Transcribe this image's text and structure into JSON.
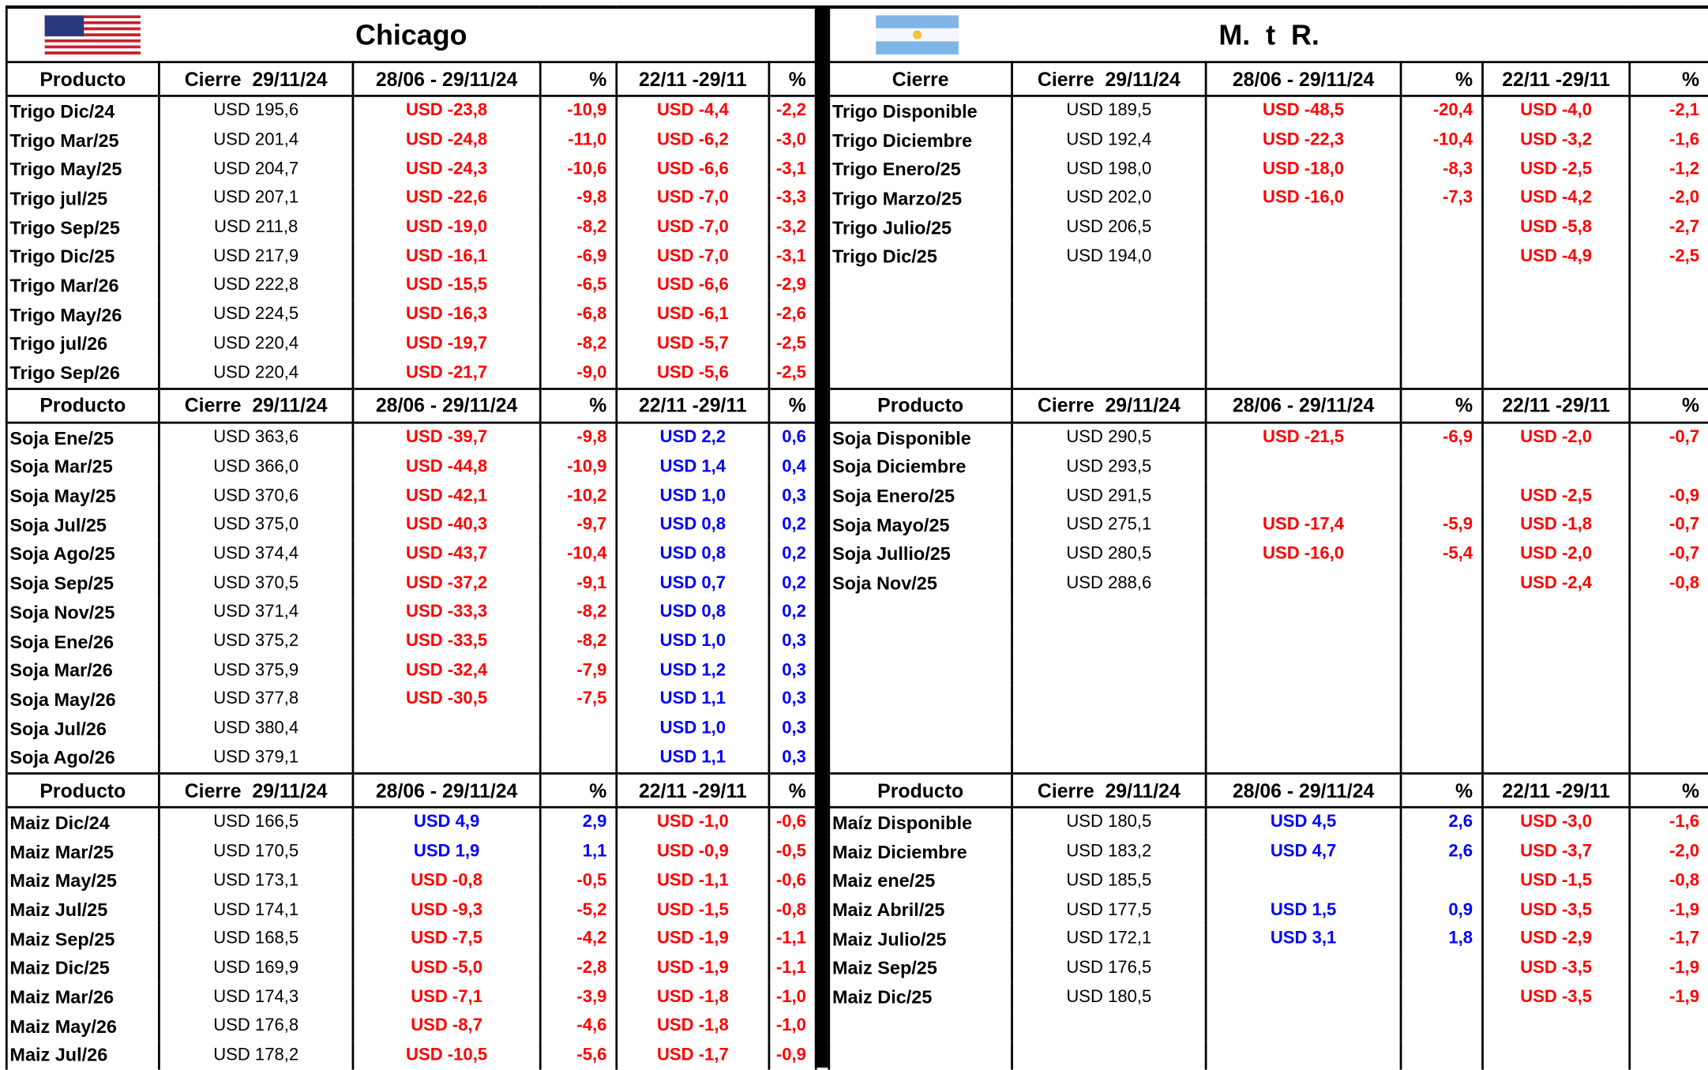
{
  "left": {
    "title": "Chicago",
    "sections": [
      {
        "header": [
          "Producto",
          "Cierre  29/11/24",
          "28/06 - 29/11/24",
          "%",
          "22/11 -29/11",
          "%"
        ],
        "rows": [
          [
            "Trigo Dic/24",
            "USD 195,6",
            "USD -23,8",
            "-10,9",
            "USD -4,4",
            "-2,2"
          ],
          [
            "Trigo Mar/25",
            "USD 201,4",
            "USD -24,8",
            "-11,0",
            "USD -6,2",
            "-3,0"
          ],
          [
            "Trigo May/25",
            "USD 204,7",
            "USD -24,3",
            "-10,6",
            "USD -6,6",
            "-3,1"
          ],
          [
            "Trigo jul/25",
            "USD 207,1",
            "USD -22,6",
            "-9,8",
            "USD -7,0",
            "-3,3"
          ],
          [
            "Trigo Sep/25",
            "USD 211,8",
            "USD -19,0",
            "-8,2",
            "USD -7,0",
            "-3,2"
          ],
          [
            "Trigo Dic/25",
            "USD 217,9",
            "USD -16,1",
            "-6,9",
            "USD -7,0",
            "-3,1"
          ],
          [
            "Trigo Mar/26",
            "USD 222,8",
            "USD -15,5",
            "-6,5",
            "USD -6,6",
            "-2,9"
          ],
          [
            "Trigo May/26",
            "USD 224,5",
            "USD -16,3",
            "-6,8",
            "USD -6,1",
            "-2,6"
          ],
          [
            "Trigo jul/26",
            "USD 220,4",
            "USD -19,7",
            "-8,2",
            "USD -5,7",
            "-2,5"
          ],
          [
            "Trigo Sep/26",
            "USD 220,4",
            "USD -21,7",
            "-9,0",
            "USD -5,6",
            "-2,5"
          ]
        ]
      },
      {
        "header": [
          "Producto",
          "Cierre  29/11/24",
          "28/06 - 29/11/24",
          "%",
          "22/11 -29/11",
          "%"
        ],
        "rows": [
          [
            "Soja Ene/25",
            "USD 363,6",
            "USD -39,7",
            "-9,8",
            "USD 2,2",
            "0,6"
          ],
          [
            "Soja Mar/25",
            "USD 366,0",
            "USD -44,8",
            "-10,9",
            "USD 1,4",
            "0,4"
          ],
          [
            "Soja May/25",
            "USD 370,6",
            "USD -42,1",
            "-10,2",
            "USD 1,0",
            "0,3"
          ],
          [
            "Soja Jul/25",
            "USD 375,0",
            "USD -40,3",
            "-9,7",
            "USD 0,8",
            "0,2"
          ],
          [
            "Soja Ago/25",
            "USD 374,4",
            "USD -43,7",
            "-10,4",
            "USD 0,8",
            "0,2"
          ],
          [
            "Soja Sep/25",
            "USD 370,5",
            "USD -37,2",
            "-9,1",
            "USD 0,7",
            "0,2"
          ],
          [
            "Soja Nov/25",
            "USD 371,4",
            "USD -33,3",
            "-8,2",
            "USD 0,8",
            "0,2"
          ],
          [
            "Soja Ene/26",
            "USD 375,2",
            "USD -33,5",
            "-8,2",
            "USD 1,0",
            "0,3"
          ],
          [
            "Soja Mar/26",
            "USD 375,9",
            "USD -32,4",
            "-7,9",
            "USD 1,2",
            "0,3"
          ],
          [
            "Soja May/26",
            "USD 377,8",
            "USD -30,5",
            "-7,5",
            "USD 1,1",
            "0,3"
          ],
          [
            "Soja Jul/26",
            "USD 380,4",
            null,
            null,
            "USD 1,0",
            "0,3"
          ],
          [
            "Soja Ago/26",
            "USD 379,1",
            null,
            null,
            "USD 1,1",
            "0,3"
          ]
        ]
      },
      {
        "header": [
          "Producto",
          "Cierre  29/11/24",
          "28/06 - 29/11/24",
          "%",
          "22/11 -29/11",
          "%"
        ],
        "rows": [
          [
            "Maiz Dic/24",
            "USD 166,5",
            "USD 4,9",
            "2,9",
            "USD -1,0",
            "-0,6"
          ],
          [
            "Maiz Mar/25",
            "USD 170,5",
            "USD 1,9",
            "1,1",
            "USD -0,9",
            "-0,5"
          ],
          [
            "Maiz May/25",
            "USD 173,1",
            "USD -0,8",
            "-0,5",
            "USD -1,1",
            "-0,6"
          ],
          [
            "Maiz Jul/25",
            "USD 174,1",
            "USD -9,3",
            "-5,2",
            "USD -1,5",
            "-0,8"
          ],
          [
            "Maiz Sep/25",
            "USD 168,5",
            "USD -7,5",
            "-4,2",
            "USD -1,9",
            "-1,1"
          ],
          [
            "Maiz Dic/25",
            "USD 169,9",
            "USD -5,0",
            "-2,8",
            "USD -1,9",
            "-1,1"
          ],
          [
            "Maiz Mar/26",
            "USD 174,3",
            "USD -7,1",
            "-3,9",
            "USD -1,8",
            "-1,0"
          ],
          [
            "Maiz May/26",
            "USD 176,8",
            "USD -8,7",
            "-4,6",
            "USD -1,8",
            "-1,0"
          ],
          [
            "Maiz Jul/26",
            "USD 178,2",
            "USD -10,5",
            "-5,6",
            "USD -1,7",
            "-0,9"
          ]
        ]
      }
    ]
  },
  "right": {
    "title": "M.  t  R.",
    "sections": [
      {
        "header": [
          "Cierre",
          "Cierre  29/11/24",
          "28/06 - 29/11/24",
          "%",
          "22/11 -29/11",
          "%"
        ],
        "rows": [
          [
            "Trigo Disponible",
            "USD 189,5",
            "USD -48,5",
            "-20,4",
            "USD -4,0",
            "-2,1"
          ],
          [
            "Trigo Diciembre",
            "USD 192,4",
            "USD -22,3",
            "-10,4",
            "USD -3,2",
            "-1,6"
          ],
          [
            "Trigo Enero/25",
            "USD 198,0",
            "USD -18,0",
            "-8,3",
            "USD -2,5",
            "-1,2"
          ],
          [
            "Trigo Marzo/25",
            "USD 202,0",
            "USD -16,0",
            "-7,3",
            "USD -4,2",
            "-2,0"
          ],
          [
            "Trigo Julio/25",
            "USD 206,5",
            null,
            null,
            "USD -5,8",
            "-2,7"
          ],
          [
            "Trigo Dic/25",
            "USD 194,0",
            null,
            null,
            "USD -4,9",
            "-2,5"
          ]
        ]
      },
      {
        "header": [
          "Producto",
          "Cierre  29/11/24",
          "28/06 - 29/11/24",
          "%",
          "22/11 -29/11",
          "%"
        ],
        "rows": [
          [
            "Soja Disponible",
            "USD 290,5",
            "USD -21,5",
            "-6,9",
            "USD -2,0",
            "-0,7"
          ],
          [
            "Soja Diciembre",
            "USD 293,5",
            null,
            null,
            null,
            null
          ],
          [
            "Soja Enero/25",
            "USD 291,5",
            null,
            null,
            "USD -2,5",
            "-0,9"
          ],
          [
            "Soja Mayo/25",
            "USD 275,1",
            "USD -17,4",
            "-5,9",
            "USD -1,8",
            "-0,7"
          ],
          [
            "Soja Jullio/25",
            "USD 280,5",
            "USD -16,0",
            "-5,4",
            "USD -2,0",
            "-0,7"
          ],
          [
            "Soja Nov/25",
            "USD 288,6",
            null,
            null,
            "USD -2,4",
            "-0,8"
          ]
        ]
      },
      {
        "header": [
          "Producto",
          "Cierre  29/11/24",
          "28/06 - 29/11/24",
          "%",
          "22/11 -29/11",
          "%"
        ],
        "rows": [
          [
            "Maíz Disponible",
            "USD 180,5",
            "USD 4,5",
            "2,6",
            "USD -3,0",
            "-1,6"
          ],
          [
            "Maiz Diciembre",
            "USD 183,2",
            "USD 4,7",
            "2,6",
            "USD -3,7",
            "-2,0"
          ],
          [
            "Maiz ene/25",
            "USD 185,5",
            null,
            null,
            "USD -1,5",
            "-0,8"
          ],
          [
            "Maiz Abril/25",
            "USD 177,5",
            "USD 1,5",
            "0,9",
            "USD -3,5",
            "-1,9"
          ],
          [
            "Maiz Julio/25",
            "USD 172,1",
            "USD 3,1",
            "1,8",
            "USD -2,9",
            "-1,7"
          ],
          [
            "Maiz Sep/25",
            "USD 176,5",
            null,
            null,
            "USD -3,5",
            "-1,9"
          ],
          [
            "Maiz Dic/25",
            "USD 180,5",
            null,
            null,
            "USD -3,5",
            "-1,9"
          ]
        ]
      }
    ]
  }
}
